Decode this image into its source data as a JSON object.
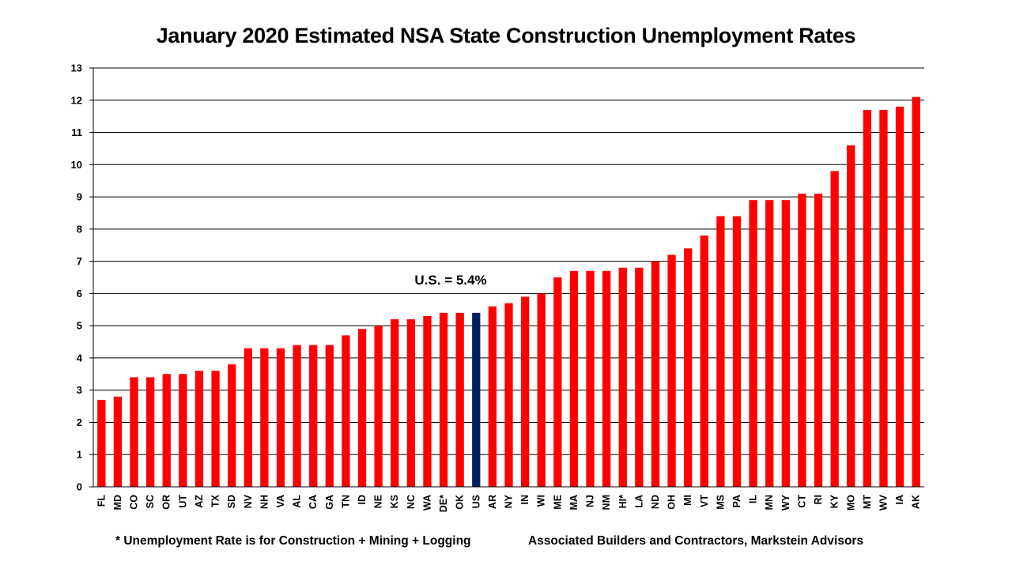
{
  "chart_data": {
    "type": "bar",
    "title": "January 2020 Estimated NSA State Construction Unemployment Rates",
    "categories": [
      "FL",
      "MD",
      "CO",
      "SC",
      "OR",
      "UT",
      "AZ",
      "TX",
      "SD",
      "NV",
      "NH",
      "VA",
      "AL",
      "CA",
      "GA",
      "TN",
      "ID",
      "NE",
      "KS",
      "NC",
      "WA",
      "DE*",
      "OK",
      "US",
      "AR",
      "NY",
      "IN",
      "WI",
      "ME",
      "MA",
      "NJ",
      "NM",
      "HI*",
      "LA",
      "ND",
      "OH",
      "MI",
      "VT",
      "MS",
      "PA",
      "IL",
      "MN",
      "WY",
      "CT",
      "RI",
      "KY",
      "MO",
      "MT",
      "WV",
      "IA",
      "AK"
    ],
    "values": [
      2.7,
      2.8,
      3.4,
      3.4,
      3.5,
      3.5,
      3.6,
      3.6,
      3.8,
      4.3,
      4.3,
      4.3,
      4.4,
      4.4,
      4.4,
      4.7,
      4.9,
      5.0,
      5.2,
      5.2,
      5.3,
      5.4,
      5.4,
      5.4,
      5.6,
      5.7,
      5.9,
      6.0,
      6.5,
      6.7,
      6.7,
      6.7,
      6.8,
      6.8,
      7.0,
      7.2,
      7.4,
      7.8,
      8.4,
      8.4,
      8.9,
      8.9,
      8.9,
      9.1,
      9.1,
      9.8,
      10.6,
      11.7,
      11.7,
      11.8,
      12.1
    ],
    "ylim": [
      0,
      13
    ],
    "yticks": [
      0,
      1,
      2,
      3,
      4,
      5,
      6,
      7,
      8,
      9,
      10,
      11,
      12,
      13
    ],
    "grid": true,
    "highlight_category": "US",
    "bar_color": "#ff0000",
    "highlight_color": "#002060",
    "annotation": "U.S. = 5.4%"
  },
  "footnotes": {
    "left": "* Unemployment Rate is for Construction + Mining + Logging",
    "right": "Associated Builders and Contractors, Markstein Advisors"
  }
}
